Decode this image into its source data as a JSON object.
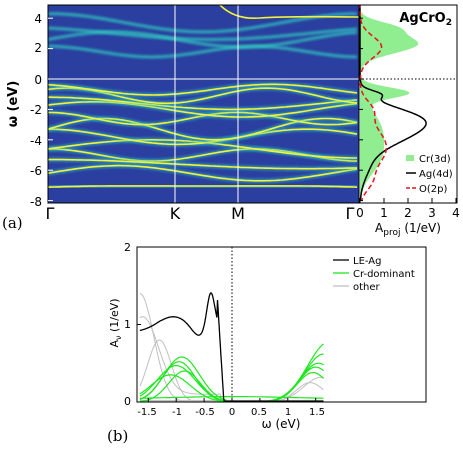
{
  "figure": {
    "panel_a_label": "(a)",
    "panel_b_label": "(b)"
  },
  "chart_data": [
    {
      "type": "heatmap",
      "panel": "a-left",
      "ylabel": "ω (eV)",
      "ylim": [
        -8,
        5
      ],
      "yticks": [
        "4",
        "2",
        "0",
        "-2",
        "-4",
        "-6",
        "-8"
      ],
      "xticks": [
        "Γ",
        "K",
        "M",
        "Γ"
      ],
      "description_colors": {
        "background": "#2a3f9f",
        "band": "#f2f23c",
        "band_mid": "#30c7c1"
      }
    },
    {
      "type": "line",
      "panel": "a-right",
      "title": "AgCrO2",
      "xlabel": "A_proj (1/eV)",
      "xlim": [
        0,
        4
      ],
      "xticks": [
        "0",
        "1",
        "2",
        "3",
        "4"
      ],
      "ylim": [
        -8,
        5
      ],
      "series": [
        {
          "name": "Cr(3d)",
          "style": "filled",
          "color": "#90ee90"
        },
        {
          "name": "Ag(4d)",
          "style": "solid",
          "color": "#000000"
        },
        {
          "name": "O(2p)",
          "style": "dashed",
          "color": "#e8121a"
        }
      ],
      "legend": "bottom-right"
    },
    {
      "type": "line",
      "panel": "b",
      "xlabel": "ω (eV)",
      "ylabel": "A_ν (1/eV)",
      "xlim": [
        -1.6,
        1.6
      ],
      "ylim": [
        0,
        2
      ],
      "xticks": [
        "-1.5",
        "-1",
        "-0.5",
        "0",
        "0.5",
        "1",
        "1.5"
      ],
      "yticks": [
        "0",
        "1",
        "2"
      ],
      "series": [
        {
          "name": "LE-Ag",
          "color": "#000000"
        },
        {
          "name": "Cr-dominant",
          "color": "#20e620"
        },
        {
          "name": "other",
          "color": "#c0c0c0"
        }
      ],
      "legend": "top-right"
    }
  ]
}
